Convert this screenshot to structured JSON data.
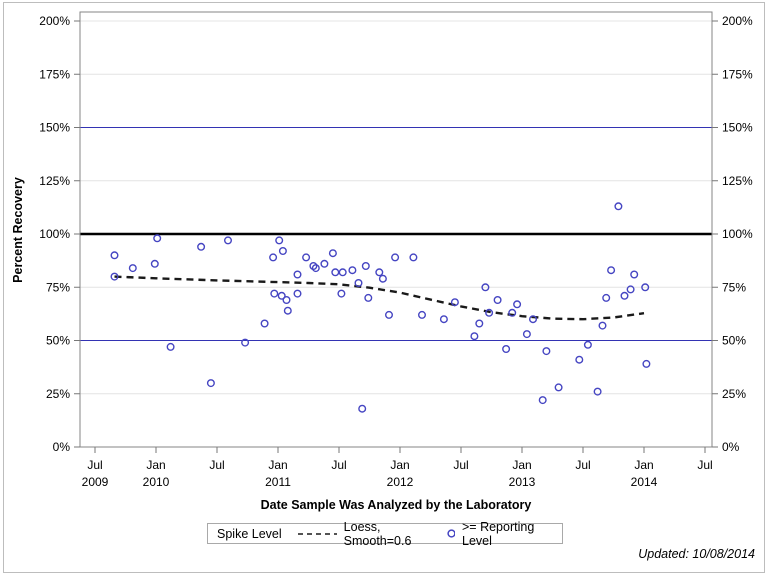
{
  "figure": {
    "footnote": "Updated: 10/08/2014"
  },
  "legend": {
    "title": "Spike Level",
    "items": [
      {
        "label": "Loess, Smooth=0.6",
        "swatch": "dashed-line",
        "color": "#1a1a1a"
      },
      {
        "label": ">= Reporting Level",
        "swatch": "open-circle",
        "color": "#4545c2"
      }
    ]
  },
  "chart_data": {
    "type": "scatter",
    "title": "",
    "x_axis": {
      "label": "Date Sample Was Analyzed by the Laboratory",
      "range": [
        2009.45,
        2014.55
      ],
      "ticks": [
        {
          "x": 2009.5,
          "month": "Jul",
          "year": "2009"
        },
        {
          "x": 2010.0,
          "month": "Jan",
          "year": "2010"
        },
        {
          "x": 2010.5,
          "month": "Jul",
          "year": ""
        },
        {
          "x": 2011.0,
          "month": "Jan",
          "year": "2011"
        },
        {
          "x": 2011.5,
          "month": "Jul",
          "year": ""
        },
        {
          "x": 2012.0,
          "month": "Jan",
          "year": "2012"
        },
        {
          "x": 2012.5,
          "month": "Jul",
          "year": ""
        },
        {
          "x": 2013.0,
          "month": "Jan",
          "year": "2013"
        },
        {
          "x": 2013.5,
          "month": "Jul",
          "year": ""
        },
        {
          "x": 2014.0,
          "month": "Jan",
          "year": "2014"
        },
        {
          "x": 2014.5,
          "month": "Jul",
          "year": ""
        }
      ]
    },
    "y_axis": {
      "label": "Percent Recovery",
      "unit": "%",
      "ticks": [
        0,
        25,
        50,
        75,
        100,
        125,
        150,
        175,
        200
      ],
      "range": [
        0,
        204
      ],
      "mirrored_right_axis": true,
      "grid": true
    },
    "reference_lines": [
      {
        "name": "lower-reporting-reference",
        "value": 50,
        "color": "#3333b3",
        "width": 1
      },
      {
        "name": "spike-level-reference",
        "value": 100,
        "color": "#000000",
        "width": 2.6
      },
      {
        "name": "upper-reporting-reference",
        "value": 150,
        "color": "#3333b3",
        "width": 1
      }
    ],
    "series": [
      {
        "name": "Loess, Smooth=0.6",
        "type": "line",
        "style": "dashed",
        "color": "#1a1a1a",
        "points": [
          [
            2009.66,
            80
          ],
          [
            2010.0,
            79.2
          ],
          [
            2010.5,
            78.2
          ],
          [
            2011.0,
            77.4
          ],
          [
            2011.25,
            77
          ],
          [
            2011.5,
            76.4
          ],
          [
            2011.75,
            74.8
          ],
          [
            2012.0,
            72.5
          ],
          [
            2012.25,
            69.2
          ],
          [
            2012.5,
            66
          ],
          [
            2012.75,
            63.3
          ],
          [
            2013.0,
            61.4
          ],
          [
            2013.25,
            60.3
          ],
          [
            2013.5,
            60
          ],
          [
            2013.75,
            60.8
          ],
          [
            2014.0,
            62.8
          ]
        ]
      },
      {
        "name": ">= Reporting Level",
        "type": "scatter",
        "marker": "open-circle",
        "color": "#4545c2",
        "points": [
          [
            2009.66,
            90
          ],
          [
            2009.66,
            80
          ],
          [
            2009.81,
            84
          ],
          [
            2009.99,
            86
          ],
          [
            2010.01,
            98
          ],
          [
            2010.12,
            47
          ],
          [
            2010.37,
            94
          ],
          [
            2010.45,
            30
          ],
          [
            2010.59,
            97
          ],
          [
            2010.73,
            49
          ],
          [
            2010.89,
            58
          ],
          [
            2010.96,
            89
          ],
          [
            2010.97,
            72
          ],
          [
            2011.01,
            97
          ],
          [
            2011.03,
            71
          ],
          [
            2011.04,
            92
          ],
          [
            2011.07,
            69
          ],
          [
            2011.08,
            64
          ],
          [
            2011.16,
            81
          ],
          [
            2011.16,
            72
          ],
          [
            2011.23,
            89
          ],
          [
            2011.29,
            85
          ],
          [
            2011.31,
            84
          ],
          [
            2011.38,
            86
          ],
          [
            2011.45,
            91
          ],
          [
            2011.47,
            82
          ],
          [
            2011.52,
            72
          ],
          [
            2011.53,
            82
          ],
          [
            2011.61,
            83
          ],
          [
            2011.66,
            77
          ],
          [
            2011.69,
            18
          ],
          [
            2011.72,
            85
          ],
          [
            2011.74,
            70
          ],
          [
            2011.83,
            82
          ],
          [
            2011.86,
            79
          ],
          [
            2011.91,
            62
          ],
          [
            2011.96,
            89
          ],
          [
            2012.11,
            89
          ],
          [
            2012.18,
            62
          ],
          [
            2012.36,
            60
          ],
          [
            2012.45,
            68
          ],
          [
            2012.61,
            52
          ],
          [
            2012.65,
            58
          ],
          [
            2012.7,
            75
          ],
          [
            2012.73,
            63
          ],
          [
            2012.8,
            69
          ],
          [
            2012.87,
            46
          ],
          [
            2012.92,
            63
          ],
          [
            2012.96,
            67
          ],
          [
            2013.04,
            53
          ],
          [
            2013.09,
            60
          ],
          [
            2013.17,
            22
          ],
          [
            2013.2,
            45
          ],
          [
            2013.3,
            28
          ],
          [
            2013.47,
            41
          ],
          [
            2013.54,
            48
          ],
          [
            2013.62,
            26
          ],
          [
            2013.66,
            57
          ],
          [
            2013.69,
            70
          ],
          [
            2013.73,
            83
          ],
          [
            2013.79,
            113
          ],
          [
            2013.84,
            71
          ],
          [
            2013.89,
            74
          ],
          [
            2013.92,
            81
          ],
          [
            2014.01,
            75
          ],
          [
            2014.02,
            39
          ]
        ]
      }
    ],
    "legend_title": "Spike Level",
    "legend_position": "bottom",
    "footnote": "Updated: 10/08/2014",
    "colors": {
      "grid": "#e4e4e4",
      "frame": "#868686",
      "tick": "#777777",
      "marker": "#4545c2",
      "loess": "#1a1a1a",
      "reference_blue": "#3333b3",
      "spike_black": "#000000",
      "background": "#ffffff"
    }
  }
}
